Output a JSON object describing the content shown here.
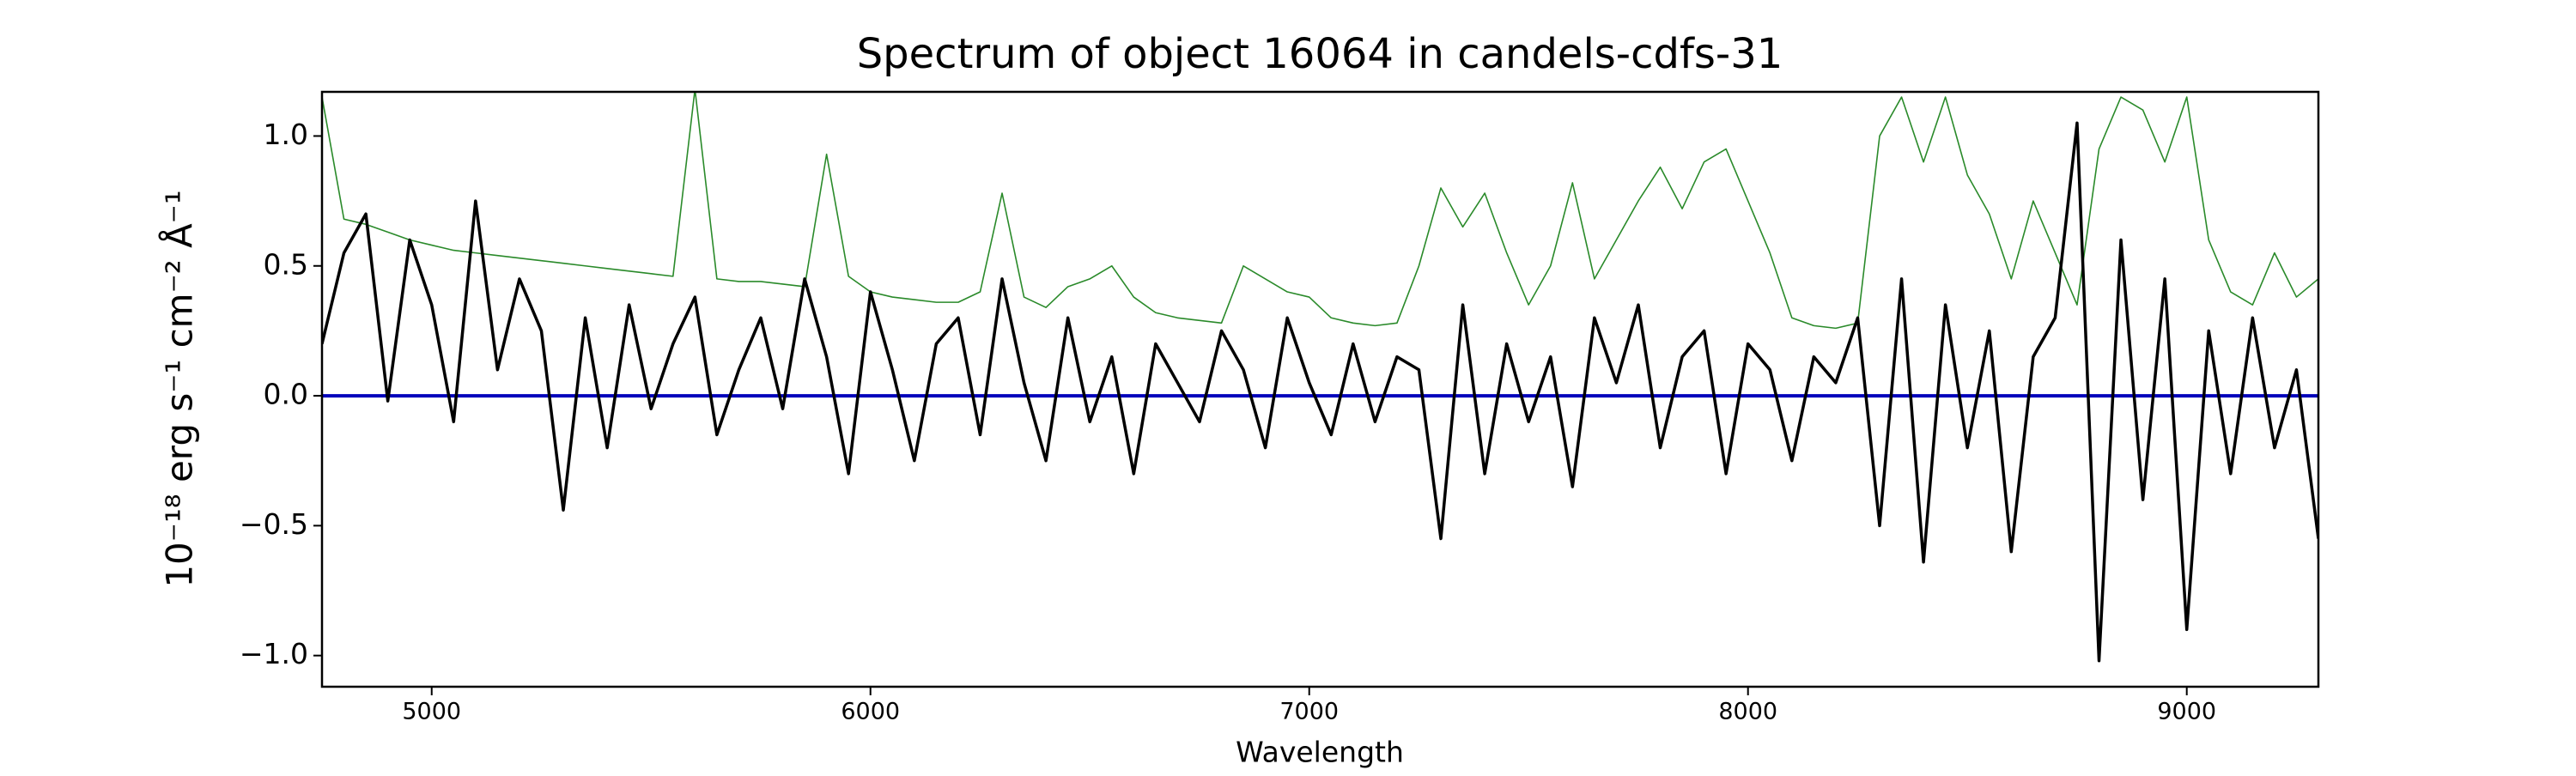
{
  "chart_data": {
    "type": "line",
    "title": "Spectrum of object 16064 in candels-cdfs-31",
    "x_label": "Wavelength",
    "y_label": "10⁻¹⁸ erg s⁻¹ cm⁻² Å⁻¹",
    "xlim": [
      4750,
      9300
    ],
    "ylim": [
      -1.12,
      1.17
    ],
    "xticks": [
      5000,
      6000,
      7000,
      8000,
      9000
    ],
    "yticks": [
      {
        "value": -1.0,
        "label": "−1.0"
      },
      {
        "value": -0.5,
        "label": "−0.5"
      },
      {
        "value": 0.0,
        "label": "0.0"
      },
      {
        "value": 0.5,
        "label": "0.5"
      },
      {
        "value": 1.0,
        "label": "1.0"
      }
    ],
    "grid": false,
    "x": [
      4750,
      4800,
      4850,
      4900,
      4950,
      5000,
      5050,
      5100,
      5150,
      5200,
      5250,
      5300,
      5350,
      5400,
      5450,
      5500,
      5550,
      5600,
      5650,
      5700,
      5750,
      5800,
      5850,
      5900,
      5950,
      6000,
      6050,
      6100,
      6150,
      6200,
      6250,
      6300,
      6350,
      6400,
      6450,
      6500,
      6550,
      6600,
      6650,
      6700,
      6750,
      6800,
      6850,
      6900,
      6950,
      7000,
      7050,
      7100,
      7150,
      7200,
      7250,
      7300,
      7350,
      7400,
      7450,
      7500,
      7550,
      7600,
      7650,
      7700,
      7750,
      7800,
      7850,
      7900,
      7950,
      8000,
      8050,
      8100,
      8150,
      8200,
      8250,
      8300,
      8350,
      8400,
      8450,
      8500,
      8550,
      8600,
      8650,
      8700,
      8750,
      8800,
      8850,
      8900,
      8950,
      9000,
      9050,
      9100,
      9150,
      9200,
      9250,
      9300
    ],
    "series": [
      {
        "color": "#2a8a2a",
        "width": 1.6,
        "values": [
          1.15,
          0.68,
          0.66,
          0.63,
          0.6,
          0.58,
          0.56,
          0.55,
          0.54,
          0.53,
          0.52,
          0.51,
          0.5,
          0.49,
          0.48,
          0.47,
          0.46,
          1.18,
          0.45,
          0.44,
          0.44,
          0.43,
          0.42,
          0.93,
          0.46,
          0.4,
          0.38,
          0.37,
          0.36,
          0.36,
          0.4,
          0.78,
          0.38,
          0.34,
          0.42,
          0.45,
          0.5,
          0.38,
          0.32,
          0.3,
          0.29,
          0.28,
          0.5,
          0.45,
          0.4,
          0.38,
          0.3,
          0.28,
          0.27,
          0.28,
          0.5,
          0.8,
          0.65,
          0.78,
          0.55,
          0.35,
          0.5,
          0.82,
          0.45,
          0.6,
          0.75,
          0.88,
          0.72,
          0.9,
          0.95,
          0.75,
          0.55,
          0.3,
          0.27,
          0.26,
          0.28,
          1.0,
          1.15,
          0.9,
          1.15,
          0.85,
          0.7,
          0.45,
          0.75,
          0.55,
          0.35,
          0.95,
          1.15,
          1.1,
          0.9,
          1.15,
          0.6,
          0.4,
          0.35,
          0.55,
          0.38,
          0.45
        ]
      },
      {
        "color": "#0000bb",
        "width": 4,
        "x": [
          4750,
          9300
        ],
        "values": [
          0,
          0
        ]
      },
      {
        "color": "#000000",
        "width": 3.5,
        "values": [
          0.2,
          0.55,
          0.7,
          -0.02,
          0.6,
          0.35,
          -0.1,
          0.75,
          0.1,
          0.45,
          0.25,
          -0.44,
          0.3,
          -0.2,
          0.35,
          -0.05,
          0.2,
          0.38,
          -0.15,
          0.1,
          0.3,
          -0.05,
          0.45,
          0.15,
          -0.3,
          0.4,
          0.1,
          -0.25,
          0.2,
          0.3,
          -0.15,
          0.45,
          0.05,
          -0.25,
          0.3,
          -0.1,
          0.15,
          -0.3,
          0.2,
          0.05,
          -0.1,
          0.25,
          0.1,
          -0.2,
          0.3,
          0.05,
          -0.15,
          0.2,
          -0.1,
          0.15,
          0.1,
          -0.55,
          0.35,
          -0.3,
          0.2,
          -0.1,
          0.15,
          -0.35,
          0.3,
          0.05,
          0.35,
          -0.2,
          0.15,
          0.25,
          -0.3,
          0.2,
          0.1,
          -0.25,
          0.15,
          0.05,
          0.3,
          -0.5,
          0.45,
          -0.64,
          0.35,
          -0.2,
          0.25,
          -0.6,
          0.15,
          0.3,
          1.05,
          -1.02,
          0.6,
          -0.4,
          0.45,
          -0.9,
          0.25,
          -0.3,
          0.3,
          -0.2,
          0.1,
          -0.55
        ]
      }
    ]
  }
}
